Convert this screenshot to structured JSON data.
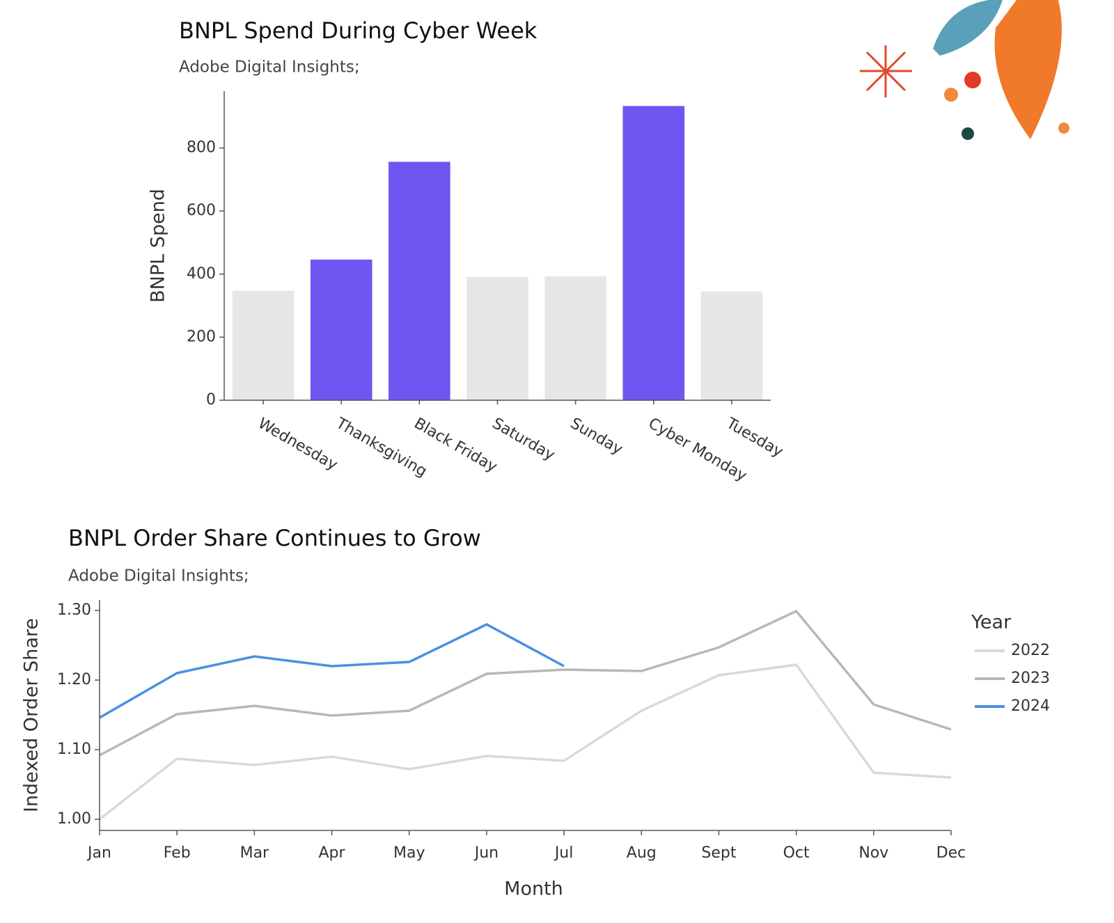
{
  "chart_data": [
    {
      "type": "bar",
      "title": "BNPL Spend During Cyber Week",
      "subtitle": "Adobe Digital Insights;",
      "y_label": "BNPL Spend",
      "categories": [
        "Wednesday",
        "Thanksgiving",
        "Black Friday",
        "Saturday",
        "Sunday",
        "Cyber Monday",
        "Tuesday"
      ],
      "values": [
        347,
        446,
        756,
        391,
        393,
        933,
        345
      ],
      "colors": [
        "#e6e6e6",
        "#6e56f0",
        "#6e56f0",
        "#e6e6e6",
        "#e6e6e6",
        "#6e56f0",
        "#e6e6e6"
      ],
      "ylim": [
        0,
        980
      ],
      "yticks": [
        0,
        200,
        400,
        600,
        800
      ],
      "grid": false
    },
    {
      "type": "line",
      "title": "BNPL Order Share Continues to Grow",
      "subtitle": "Adobe Digital Insights;",
      "x_label": "Month",
      "y_label": "Indexed Order Share",
      "categories": [
        "Jan",
        "Feb",
        "Mar",
        "Apr",
        "May",
        "Jun",
        "Jul",
        "Aug",
        "Sept",
        "Oct",
        "Nov",
        "Dec"
      ],
      "legend_title": "Year",
      "legend": "right",
      "series": [
        {
          "name": "2022",
          "color": "#d9d9d9",
          "values": [
            1.0,
            1.087,
            1.078,
            1.09,
            1.072,
            1.091,
            1.084,
            1.156,
            1.207,
            1.222,
            1.067,
            1.06
          ]
        },
        {
          "name": "2023",
          "color": "#b8b8b8",
          "values": [
            1.092,
            1.151,
            1.163,
            1.149,
            1.156,
            1.209,
            1.215,
            1.213,
            1.247,
            1.299,
            1.165,
            1.129
          ]
        },
        {
          "name": "2024",
          "color": "#4a90e2",
          "values": [
            1.146,
            1.21,
            1.234,
            1.22,
            1.226,
            1.28,
            1.22,
            null,
            null,
            null,
            null,
            null
          ]
        }
      ],
      "ylim": [
        0.984,
        1.315
      ],
      "yticks": [
        {
          "value": 1.0,
          "label": "1.00"
        },
        {
          "value": 1.1,
          "label": "1.10"
        },
        {
          "value": 1.2,
          "label": "1.20"
        },
        {
          "value": 1.3,
          "label": "1.30"
        }
      ],
      "grid": false
    }
  ]
}
